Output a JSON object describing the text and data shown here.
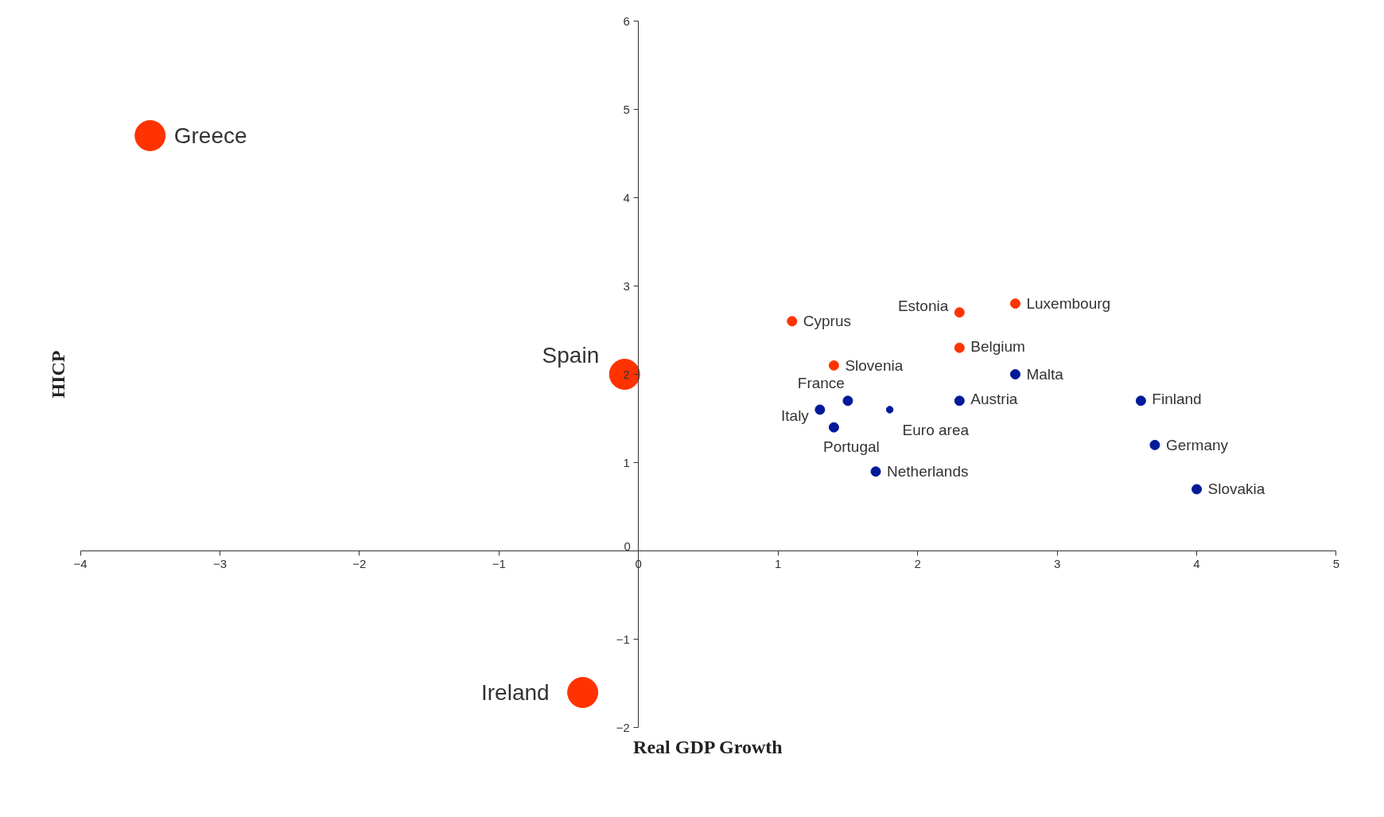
{
  "chart_data": {
    "type": "bubble",
    "xlabel": "Real GDP Growth",
    "ylabel": "HICP",
    "xlim": [
      -4,
      5
    ],
    "ylim": [
      -2,
      6
    ],
    "xticks": [
      -4,
      -3,
      -2,
      -1,
      0,
      1,
      2,
      3,
      4,
      5
    ],
    "yticks": [
      -2,
      -1,
      0,
      1,
      2,
      3,
      4,
      5,
      6
    ],
    "marker": "circle",
    "series": [
      {
        "color": "#ff3300",
        "x": [
          -3.5,
          -0.1,
          -0.4,
          1.1,
          2.3,
          2.7,
          2.3,
          1.4
        ],
        "values": [
          4.7,
          2.0,
          -1.6,
          2.6,
          2.7,
          2.8,
          2.3,
          2.1
        ],
        "sizes": [
          1,
          1,
          1,
          0.1,
          0.1,
          0.1,
          0.1,
          0.1
        ]
      },
      {
        "color": "#001a99",
        "x": [
          2.7,
          1.5,
          1.8,
          2.3,
          3.6,
          1.3,
          1.4,
          3.7,
          1.7,
          4.0
        ],
        "values": [
          2.0,
          1.7,
          1.6,
          1.7,
          1.7,
          1.6,
          1.4,
          1.2,
          0.9,
          0.7
        ],
        "sizes": [
          0.1,
          0.1,
          0.05,
          0.1,
          0.1,
          0.1,
          0.1,
          0.1,
          0.1,
          0.1
        ]
      }
    ],
    "annotations": [
      {
        "text": "Greece",
        "x": -3.5,
        "y": 4.7
      },
      {
        "text": "Spain",
        "x": -0.1,
        "y": 2.0
      },
      {
        "text": "Ireland",
        "x": -0.4,
        "y": -1.6
      },
      {
        "text": "Cyprus",
        "x": 1.1,
        "y": 2.6
      },
      {
        "text": "Estonia",
        "x": 2.3,
        "y": 2.7
      },
      {
        "text": "Luxembourg",
        "x": 2.7,
        "y": 2.8
      },
      {
        "text": "Belgium",
        "x": 2.3,
        "y": 2.3
      },
      {
        "text": "Slovenia",
        "x": 1.4,
        "y": 2.1
      },
      {
        "text": "Malta",
        "x": 2.7,
        "y": 2.0
      },
      {
        "text": "France",
        "x": 1.5,
        "y": 1.7
      },
      {
        "text": "Euro area",
        "x": 1.8,
        "y": 1.6
      },
      {
        "text": "Austria",
        "x": 2.3,
        "y": 1.7
      },
      {
        "text": "Finland",
        "x": 3.6,
        "y": 1.7
      },
      {
        "text": "Italy",
        "x": 1.3,
        "y": 1.6
      },
      {
        "text": "Portugal",
        "x": 1.4,
        "y": 1.4
      },
      {
        "text": "Germany",
        "x": 3.7,
        "y": 1.2
      },
      {
        "text": "Netherlands",
        "x": 1.7,
        "y": 0.9
      },
      {
        "text": "Slovakia",
        "x": 4.0,
        "y": 0.7
      }
    ]
  }
}
